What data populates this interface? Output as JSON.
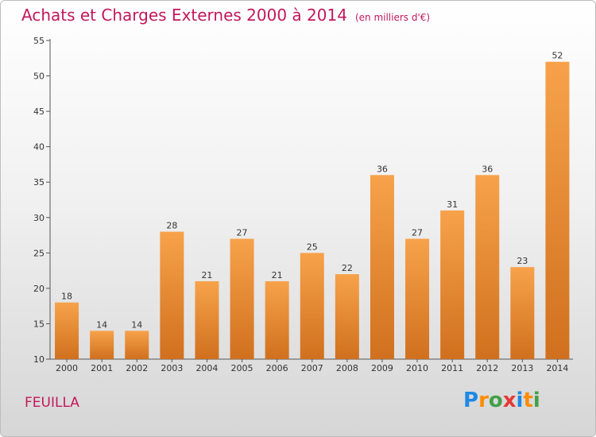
{
  "header": {
    "title": "Achats et Charges Externes 2000 à 2014",
    "subtitle": "(en milliers d'€)"
  },
  "footer": {
    "commune": "FEUILLA",
    "logo_text": "Proxiti",
    "logo_letters": [
      {
        "ch": "P",
        "color": "#1e88e5"
      },
      {
        "ch": "r",
        "color": "#fb8c00"
      },
      {
        "ch": "o",
        "color": "#43a047"
      },
      {
        "ch": "x",
        "color": "#e53935"
      },
      {
        "ch": "i",
        "color": "#1e88e5"
      },
      {
        "ch": "t",
        "color": "#fb8c00"
      },
      {
        "ch": "i",
        "color": "#43a047"
      }
    ]
  },
  "colors": {
    "title": "#c2185b",
    "bar_light": "#f7a24b",
    "bar_dark": "#d0701e"
  },
  "chart_data": {
    "type": "bar",
    "categories": [
      "2000",
      "2001",
      "2002",
      "2003",
      "2004",
      "2005",
      "2006",
      "2007",
      "2008",
      "2009",
      "2010",
      "2011",
      "2012",
      "2013",
      "2014"
    ],
    "values": [
      18,
      14,
      14,
      28,
      21,
      27,
      21,
      25,
      22,
      36,
      27,
      31,
      36,
      23,
      52
    ],
    "ylim": [
      10,
      55
    ],
    "yticks": [
      10,
      15,
      20,
      25,
      30,
      35,
      40,
      45,
      50,
      55
    ],
    "grid": false,
    "legend": "none",
    "data_labels": true
  }
}
